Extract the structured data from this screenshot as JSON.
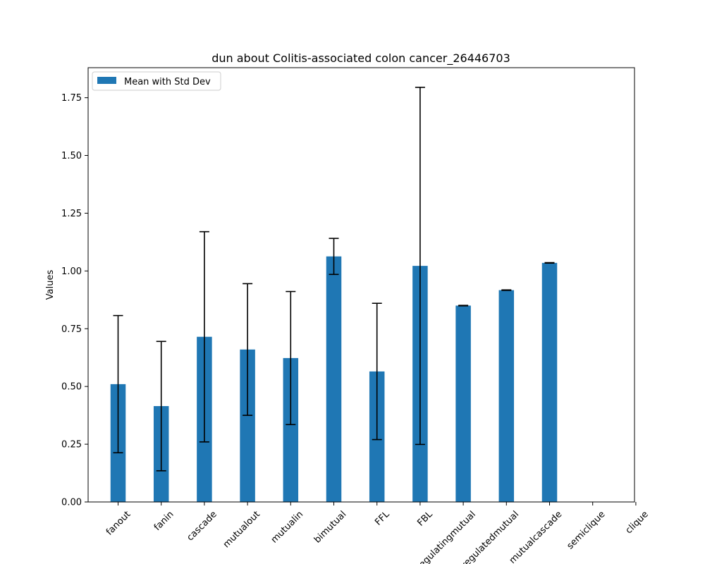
{
  "chart_data": {
    "type": "bar",
    "title": "dun about Colitis-associated colon cancer_26446703",
    "xlabel": "",
    "ylabel": "Values",
    "ylim": [
      0,
      1.88
    ],
    "yticks": [
      "0.00",
      "0.25",
      "0.50",
      "0.75",
      "1.00",
      "1.25",
      "1.50",
      "1.75"
    ],
    "categories": [
      "fanout",
      "fanin",
      "cascade",
      "mutualout",
      "mutualin",
      "bimutual",
      "FFL",
      "FBL",
      "regulatingmutual",
      "regulatedmutual",
      "mutualcascade",
      "semiclique",
      "clique"
    ],
    "series": [
      {
        "name": "Mean with Std Dev",
        "color": "#1f77b4",
        "values": [
          0.51,
          0.415,
          0.715,
          0.66,
          0.623,
          1.063,
          0.565,
          1.022,
          0.85,
          0.917,
          1.035,
          0,
          0
        ],
        "errors": [
          0.297,
          0.28,
          0.455,
          0.285,
          0.288,
          0.078,
          0.295,
          0.773,
          0.001,
          0.001,
          0.001,
          0,
          0
        ]
      }
    ],
    "legend": {
      "placement": "top-left",
      "label": "Mean with Std Dev"
    },
    "grid": false
  }
}
